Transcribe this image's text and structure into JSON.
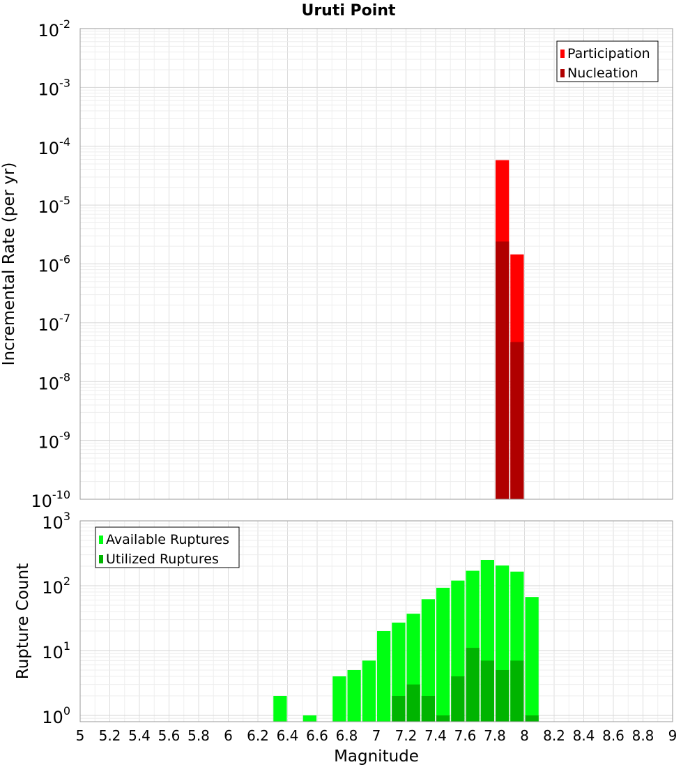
{
  "title": "Uruti Point",
  "chart_data": [
    {
      "type": "bar",
      "title": "Uruti Point",
      "xlabel": "",
      "ylabel": "Incremental Rate (per yr)",
      "yscale": "log",
      "ylim": [
        1e-10,
        0.01
      ],
      "xlim": [
        5,
        9
      ],
      "bar_width": 0.1,
      "ytick_bases": [
        "10",
        "10",
        "10",
        "10",
        "10",
        "10",
        "10",
        "10",
        "10"
      ],
      "ytick_exponents": [
        "-10",
        "-9",
        "-8",
        "-7",
        "-6",
        "-5",
        "-4",
        "-3",
        "-2"
      ],
      "grid": true,
      "legend_position": "top-right",
      "series": [
        {
          "name": "Participation",
          "color": "#ff0000",
          "points": [
            {
              "x": 7.85,
              "y": 5.8e-05
            },
            {
              "x": 7.95,
              "y": 1.45e-06
            }
          ]
        },
        {
          "name": "Nucleation",
          "color": "#b00000",
          "points": [
            {
              "x": 7.85,
              "y": 2.4e-06
            },
            {
              "x": 7.95,
              "y": 4.7e-08
            }
          ]
        }
      ]
    },
    {
      "type": "bar",
      "title": "",
      "xlabel": "Magnitude",
      "ylabel": "Rupture Count",
      "yscale": "log",
      "ylim": [
        0.8,
        1000
      ],
      "xlim": [
        5,
        9
      ],
      "bar_width": 0.1,
      "xticks": [
        "5",
        "5.2",
        "5.4",
        "5.6",
        "5.8",
        "6",
        "6.2",
        "6.4",
        "6.6",
        "6.8",
        "7",
        "7.2",
        "7.4",
        "7.6",
        "7.8",
        "8",
        "8.2",
        "8.4",
        "8.6",
        "8.8",
        "9"
      ],
      "ytick_bases": [
        "10",
        "10",
        "10",
        "10"
      ],
      "ytick_exponents": [
        "0",
        "1",
        "2",
        "3"
      ],
      "grid": true,
      "legend_position": "top-left",
      "series": [
        {
          "name": "Available Ruptures",
          "color": "#00ff12",
          "points": [
            {
              "x": 6.35,
              "y": 2
            },
            {
              "x": 6.55,
              "y": 1
            },
            {
              "x": 6.75,
              "y": 4
            },
            {
              "x": 6.85,
              "y": 5
            },
            {
              "x": 6.95,
              "y": 7
            },
            {
              "x": 7.05,
              "y": 20
            },
            {
              "x": 7.15,
              "y": 27
            },
            {
              "x": 7.25,
              "y": 37
            },
            {
              "x": 7.35,
              "y": 62
            },
            {
              "x": 7.45,
              "y": 93
            },
            {
              "x": 7.55,
              "y": 120
            },
            {
              "x": 7.65,
              "y": 170
            },
            {
              "x": 7.75,
              "y": 250
            },
            {
              "x": 7.85,
              "y": 205
            },
            {
              "x": 7.95,
              "y": 165
            },
            {
              "x": 8.05,
              "y": 67
            }
          ]
        },
        {
          "name": "Utilized Ruptures",
          "color": "#00b400",
          "points": [
            {
              "x": 7.15,
              "y": 2
            },
            {
              "x": 7.25,
              "y": 3
            },
            {
              "x": 7.35,
              "y": 2
            },
            {
              "x": 7.45,
              "y": 1
            },
            {
              "x": 7.55,
              "y": 4
            },
            {
              "x": 7.65,
              "y": 11
            },
            {
              "x": 7.75,
              "y": 7
            },
            {
              "x": 7.85,
              "y": 5
            },
            {
              "x": 7.95,
              "y": 7
            },
            {
              "x": 8.05,
              "y": 1
            }
          ]
        }
      ]
    }
  ]
}
